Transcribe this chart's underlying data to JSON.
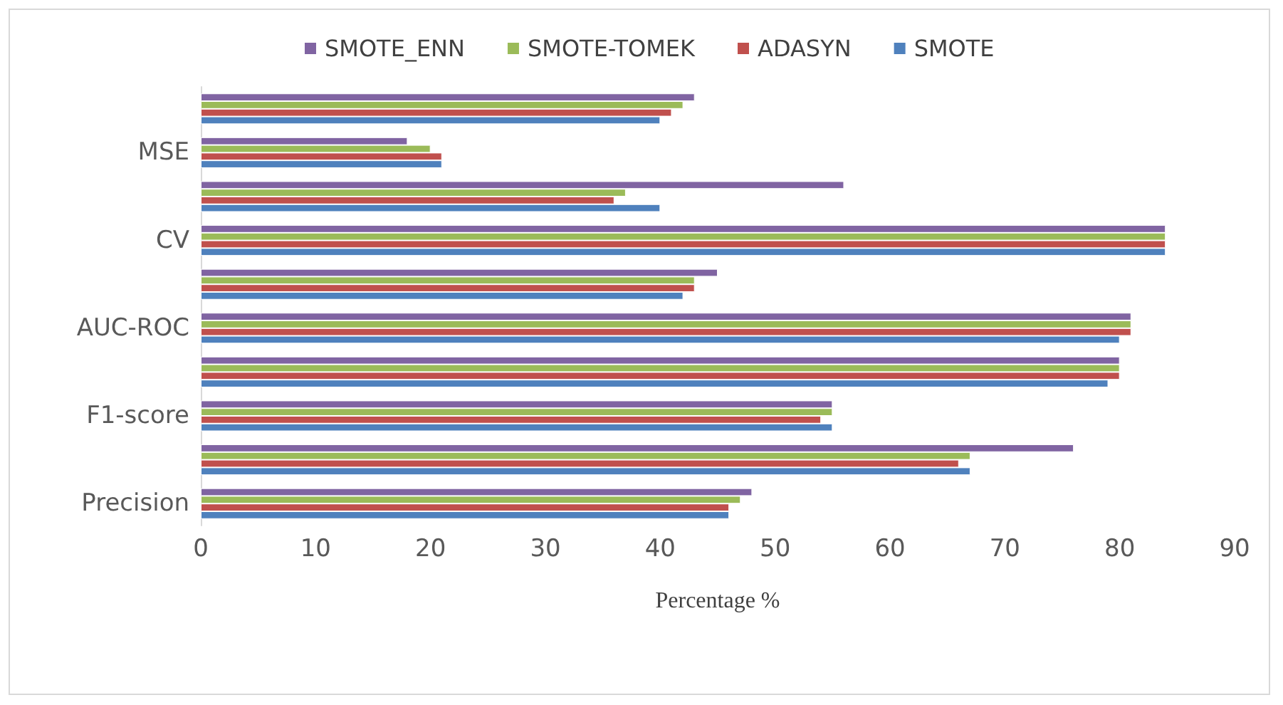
{
  "chart_data": {
    "type": "bar",
    "orientation": "horizontal",
    "xlabel": "Percentage %",
    "categories": [
      null,
      "MSE",
      null,
      "CV",
      null,
      "AUC-ROC",
      null,
      "F1-score",
      null,
      "Precision"
    ],
    "series": [
      {
        "name": "SMOTE_ENN",
        "color": "#8064a2",
        "values": [
          43,
          18,
          56,
          84,
          45,
          81,
          80,
          55,
          76,
          48
        ]
      },
      {
        "name": "SMOTE-TOMEK",
        "color": "#9bbb59",
        "values": [
          42,
          20,
          37,
          84,
          43,
          81,
          80,
          55,
          67,
          47
        ]
      },
      {
        "name": "ADASYN",
        "color": "#c0504d",
        "values": [
          41,
          21,
          36,
          84,
          43,
          81,
          80,
          54,
          66,
          46
        ]
      },
      {
        "name": "SMOTE",
        "color": "#4f81bd",
        "values": [
          40,
          21,
          40,
          84,
          42,
          80,
          79,
          55,
          67,
          46
        ]
      }
    ],
    "xlim": [
      0,
      90
    ],
    "xticks": [
      0,
      10,
      20,
      30,
      40,
      50,
      60,
      70,
      80,
      90
    ],
    "legend": "top"
  }
}
